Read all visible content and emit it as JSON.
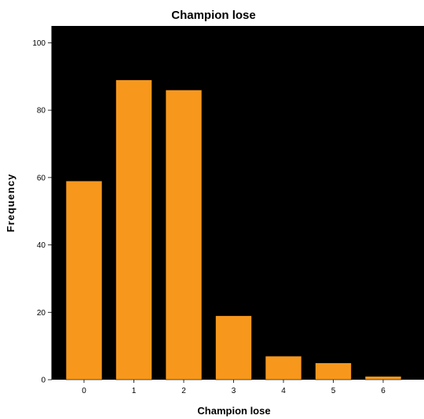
{
  "chart_data": {
    "type": "bar",
    "title": "Champion lose",
    "xlabel": "Champion lose",
    "ylabel": "Frequency",
    "categories": [
      "0",
      "1",
      "2",
      "3",
      "4",
      "5",
      "6"
    ],
    "values": [
      59,
      89,
      86,
      19,
      7,
      5,
      1
    ],
    "ylim": [
      0,
      105
    ],
    "yticks": [
      "0",
      "20",
      "40",
      "60",
      "80",
      "100"
    ],
    "grid": false,
    "colors": {
      "bar": "#F7981D",
      "plot_background": "#000000",
      "page_background": "#FFFFFF"
    }
  }
}
